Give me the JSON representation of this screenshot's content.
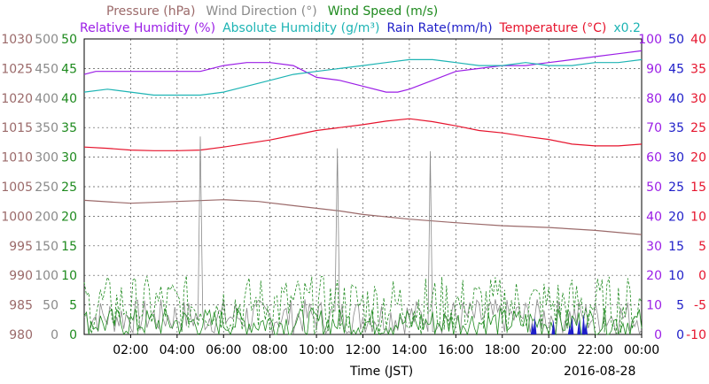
{
  "chart_data": {
    "type": "line",
    "legend": {
      "row1": [
        {
          "text": "Pressure (hPa)",
          "color": "#9b6a6a"
        },
        {
          "text": "Wind Direction (°)",
          "color": "#8a8a8a"
        },
        {
          "text": "Wind Speed (m/s)",
          "color": "#1e8a1e"
        }
      ],
      "row2": [
        {
          "text": "Relative Humidity (%)",
          "color": "#9b1ee6"
        },
        {
          "text": "Absolute Humidity (g/m³)",
          "color": "#1eb4b4"
        },
        {
          "text": "Rain Rate(mm/h)",
          "color": "#1e1ec8"
        },
        {
          "text": "Temperature (°C)",
          "color": "#e6142d"
        },
        {
          "text": "x0.2",
          "color": "#1eb4b4"
        }
      ]
    },
    "xlabel": "Time (JST)",
    "date": "2016-08-28",
    "x_ticks": [
      "02:00",
      "04:00",
      "06:00",
      "08:00",
      "10:00",
      "12:00",
      "14:00",
      "16:00",
      "18:00",
      "20:00",
      "22:00",
      "00:00"
    ],
    "x_range_hours": [
      0,
      24
    ],
    "axes": {
      "pressure": {
        "label_color": "#9b6a6a",
        "min": 980,
        "max": 1030,
        "ticks": [
          "1030",
          "1025",
          "1020",
          "1015",
          "1010",
          "1005",
          "1000",
          "995",
          "990",
          "985",
          "980"
        ]
      },
      "wind_direction": {
        "label_color": "#8a8a8a",
        "min": 0,
        "max": 500,
        "ticks": [
          "500",
          "450",
          "400",
          "350",
          "300",
          "250",
          "200",
          "150",
          "100",
          "50",
          "0"
        ]
      },
      "wind_speed": {
        "label_color": "#1e8a1e",
        "min": 0,
        "max": 50,
        "ticks": [
          "50",
          "45",
          "40",
          "35",
          "30",
          "25",
          "20",
          "15",
          "10",
          "5",
          "0"
        ]
      },
      "humidity": {
        "label_color": "#9b1ee6",
        "min": 0,
        "max": 100,
        "ticks": [
          "100",
          "90",
          "80",
          "70",
          "60",
          "50",
          "40",
          "30",
          "20",
          "10",
          "0"
        ]
      },
      "rain_rate": {
        "label_color": "#1e1ec8",
        "min": 0,
        "max": 50,
        "ticks": [
          "50",
          "45",
          "40",
          "35",
          "30",
          "25",
          "20",
          "15",
          "10",
          "5",
          "0"
        ]
      },
      "temperature": {
        "label_color": "#e6142d",
        "min": -10,
        "max": 40,
        "ticks": [
          "40",
          "35",
          "30",
          "25",
          "20",
          "15",
          "10",
          "5",
          "0",
          "-5",
          "-10"
        ]
      }
    },
    "series": [
      {
        "name": "Pressure (hPa)",
        "color": "#9b6a6a",
        "axis": "pressure",
        "x": [
          0,
          2,
          4,
          6,
          7.5,
          9,
          11,
          12,
          14,
          16,
          18,
          20,
          22,
          24
        ],
        "y": [
          1002.7,
          1002.2,
          1002.5,
          1002.8,
          1002.5,
          1001.8,
          1000.9,
          1000.3,
          999.5,
          998.9,
          998.4,
          998.1,
          997.6,
          996.9
        ]
      },
      {
        "name": "Relative Humidity (%)",
        "color": "#9b1ee6",
        "axis": "humidity",
        "x": [
          0,
          0.5,
          2,
          4,
          5,
          6,
          7,
          8,
          9,
          9.5,
          10,
          11,
          12,
          13,
          13.5,
          14,
          15,
          16,
          17,
          18,
          19,
          20,
          21,
          22,
          23,
          24
        ],
        "y": [
          88,
          89,
          89,
          89,
          89,
          91,
          92,
          92,
          91,
          89,
          87,
          86,
          84,
          82,
          82,
          83,
          86,
          89,
          90,
          91,
          91,
          92,
          93,
          94,
          95,
          96
        ]
      },
      {
        "name": "Absolute Humidity (g/m³)",
        "color": "#1eb4b4",
        "axis": "humidity",
        "x": [
          0,
          1,
          2,
          3,
          4,
          5,
          6,
          7,
          8,
          9,
          10,
          11,
          12,
          13,
          14,
          15,
          16,
          17,
          18,
          19,
          20,
          21,
          22,
          23,
          24
        ],
        "y": [
          82,
          83,
          82,
          81,
          81,
          81,
          82,
          84,
          86,
          88,
          89,
          90,
          91,
          92,
          93,
          93,
          92,
          91,
          91,
          92,
          91,
          91,
          92,
          92,
          93
        ]
      },
      {
        "name": "Temperature (°C)",
        "color": "#e6142d",
        "axis": "temperature",
        "x": [
          0,
          1,
          2,
          3,
          4,
          5,
          6,
          7,
          8,
          9,
          10,
          11,
          12,
          13,
          14,
          15,
          16,
          17,
          18,
          19,
          20,
          21,
          22,
          23,
          24
        ],
        "y": [
          21.7,
          21.5,
          21.2,
          21.1,
          21.1,
          21.2,
          21.7,
          22.3,
          22.9,
          23.7,
          24.5,
          25.0,
          25.5,
          26.1,
          26.5,
          26.0,
          25.3,
          24.5,
          24.1,
          23.5,
          23.0,
          22.2,
          21.9,
          21.9,
          22.2
        ]
      },
      {
        "name": "Wind Direction (°)",
        "color": "#8a8a8a",
        "axis": "wind_direction",
        "style": "noisy",
        "baseline": 30,
        "spread": 30,
        "spikes": [
          {
            "x": 5.0,
            "y": 335
          },
          {
            "x": 10.9,
            "y": 315
          },
          {
            "x": 14.9,
            "y": 310
          }
        ]
      },
      {
        "name": "Wind Speed (m/s)",
        "color": "#1e8a1e",
        "axis": "wind_speed",
        "style": "noisy",
        "baseline": 2,
        "spread": 2.5
      },
      {
        "name": "Wind Speed gust (m/s)",
        "color": "#1e8a1e",
        "axis": "wind_speed",
        "style": "noisy-dashed",
        "baseline": 5,
        "spread": 5
      },
      {
        "name": "Rain Rate(mm/h)",
        "color": "#1e1ec8",
        "axis": "rain_rate",
        "style": "bars",
        "x": [
          19.3,
          19.4,
          20.2,
          20.9,
          21.0,
          21.3,
          21.5,
          21.6
        ],
        "y": [
          2.0,
          3.0,
          2.5,
          1.5,
          3.0,
          2.5,
          3.5,
          2.0
        ]
      }
    ]
  }
}
